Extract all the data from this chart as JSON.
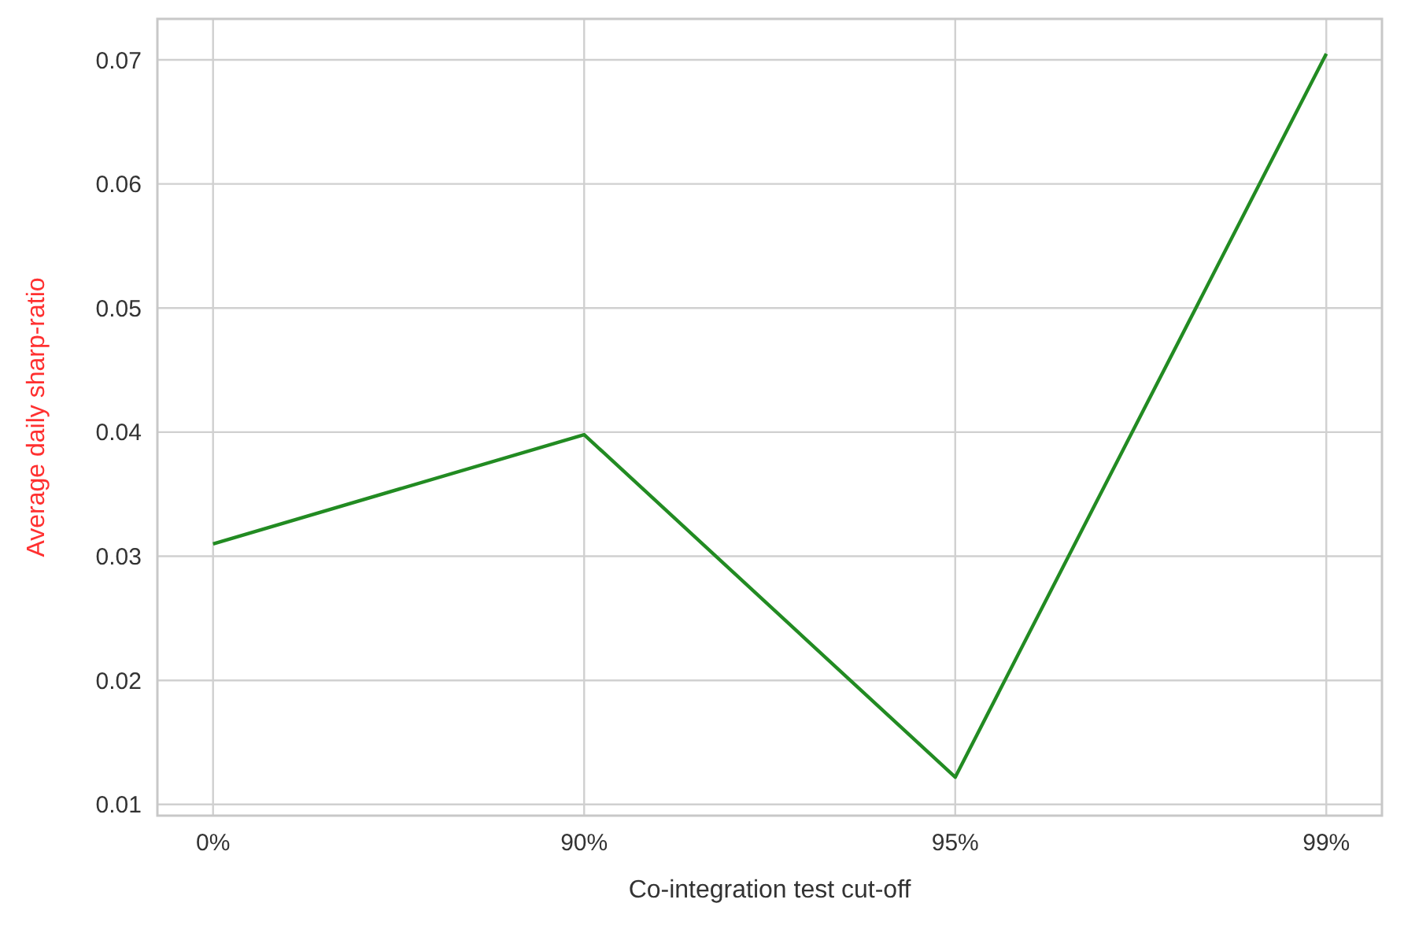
{
  "chart_data": {
    "type": "line",
    "xlabel": "Co-integration test cut-off",
    "ylabel": "Average daily sharp-ratio",
    "categories": [
      "0%",
      "90%",
      "95%",
      "99%"
    ],
    "series": [
      {
        "color": "#228b22",
        "values": [
          0.031,
          0.0398,
          0.0122,
          0.0705
        ]
      }
    ],
    "ylim": [
      0.0091,
      0.0733
    ],
    "yticks": [
      0.01,
      0.02,
      0.03,
      0.04,
      0.05,
      0.06,
      0.07
    ],
    "grid": true,
    "line_style": "solid",
    "marker": "none"
  }
}
